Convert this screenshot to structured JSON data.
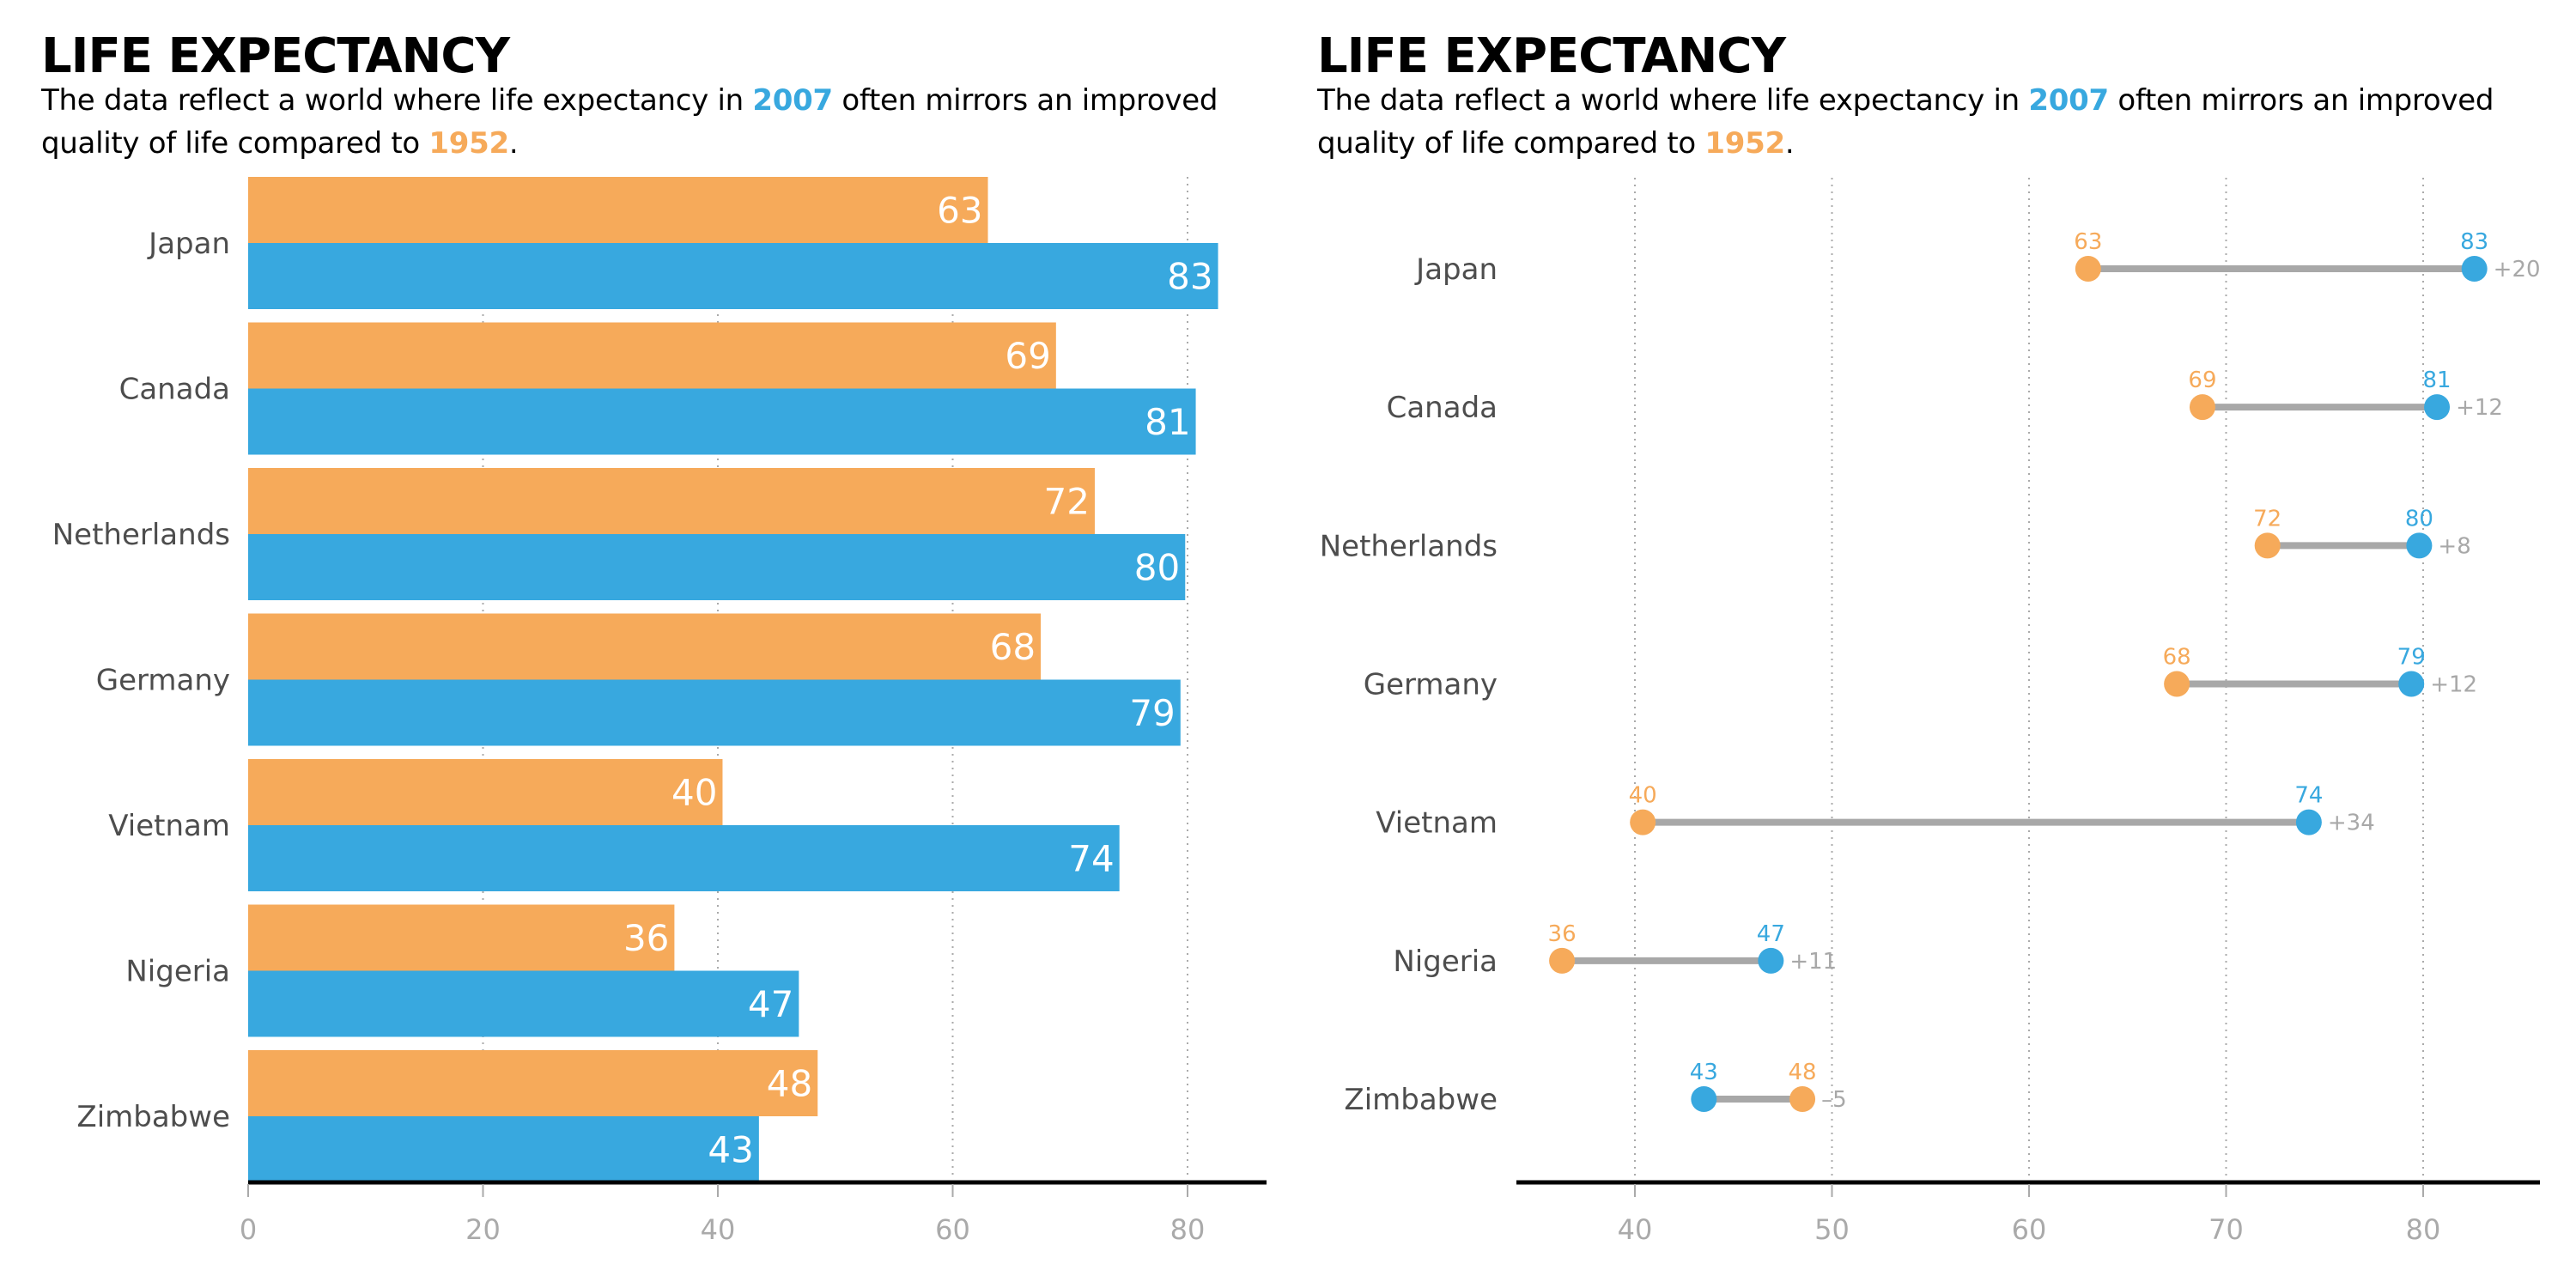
{
  "colors": {
    "year_2007": "#38a8df",
    "year_1952": "#f6aa5a",
    "connector": "#a8a8a8",
    "grid": "#aaaaaa",
    "axis": "#000000",
    "category_text": "#4d4d4d"
  },
  "left_panel": {
    "title": "LIFE EXPECTANCY",
    "subtitle": {
      "part1": "The data reflect a world where life expectancy in ",
      "year_new": "2007",
      "part2": " often mirrors an improved quality of life compared to ",
      "year_old": "1952",
      "part3": "."
    }
  },
  "right_panel": {
    "title": "LIFE EXPECTANCY",
    "subtitle": {
      "part1": "The data reflect a world where life expectancy in ",
      "year_new": "2007",
      "part2": " often mirrors an improved quality of life compared to ",
      "year_old": "1952",
      "part3": "."
    }
  },
  "chart_data": [
    {
      "type": "bar",
      "orientation": "horizontal",
      "title": "LIFE EXPECTANCY",
      "subtitle": "The data reflect a world where life expectancy in 2007 often mirrors an improved quality of life compared to 1952.",
      "categories": [
        "Japan",
        "Canada",
        "Netherlands",
        "Germany",
        "Vietnam",
        "Nigeria",
        "Zimbabwe"
      ],
      "series": [
        {
          "name": "1952",
          "values": [
            63.0,
            68.8,
            72.1,
            67.5,
            40.4,
            36.3,
            48.5
          ],
          "labels": [
            "63",
            "69",
            "72",
            "68",
            "40",
            "36",
            "48"
          ]
        },
        {
          "name": "2007",
          "values": [
            82.6,
            80.7,
            79.8,
            79.4,
            74.2,
            46.9,
            43.5
          ],
          "labels": [
            "83",
            "81",
            "80",
            "79",
            "74",
            "47",
            "43"
          ]
        }
      ],
      "xlim": [
        0,
        86
      ],
      "xticks": [
        0,
        20,
        40,
        60,
        80
      ],
      "xtick_labels": [
        "0",
        "20",
        "40",
        "60",
        "80"
      ],
      "xlabel": "",
      "ylabel": "",
      "grid": "vertical-dotted",
      "legend": "none (colors explained in subtitle)"
    },
    {
      "type": "dumbbell",
      "title": "LIFE EXPECTANCY",
      "subtitle": "The data reflect a world where life expectancy in 2007 often mirrors an improved quality of life compared to 1952.",
      "categories": [
        "Japan",
        "Canada",
        "Netherlands",
        "Germany",
        "Vietnam",
        "Nigeria",
        "Zimbabwe"
      ],
      "series": [
        {
          "name": "1952",
          "values": [
            63.0,
            68.8,
            72.1,
            67.5,
            40.4,
            36.3,
            48.5
          ],
          "labels": [
            "63",
            "69",
            "72",
            "68",
            "40",
            "36",
            "48"
          ]
        },
        {
          "name": "2007",
          "values": [
            82.6,
            80.7,
            79.8,
            79.4,
            74.2,
            46.9,
            43.5
          ],
          "labels": [
            "83",
            "81",
            "80",
            "79",
            "74",
            "47",
            "43"
          ]
        }
      ],
      "differences": [
        "+20",
        "+12",
        "+8",
        "+12",
        "+34",
        "+11",
        "–5"
      ],
      "xlim": [
        34,
        86
      ],
      "xticks": [
        40,
        50,
        60,
        70,
        80
      ],
      "xtick_labels": [
        "40",
        "50",
        "60",
        "70",
        "80"
      ],
      "xlabel": "",
      "ylabel": "",
      "grid": "vertical-dotted",
      "legend": "none (colors explained in subtitle)"
    }
  ]
}
